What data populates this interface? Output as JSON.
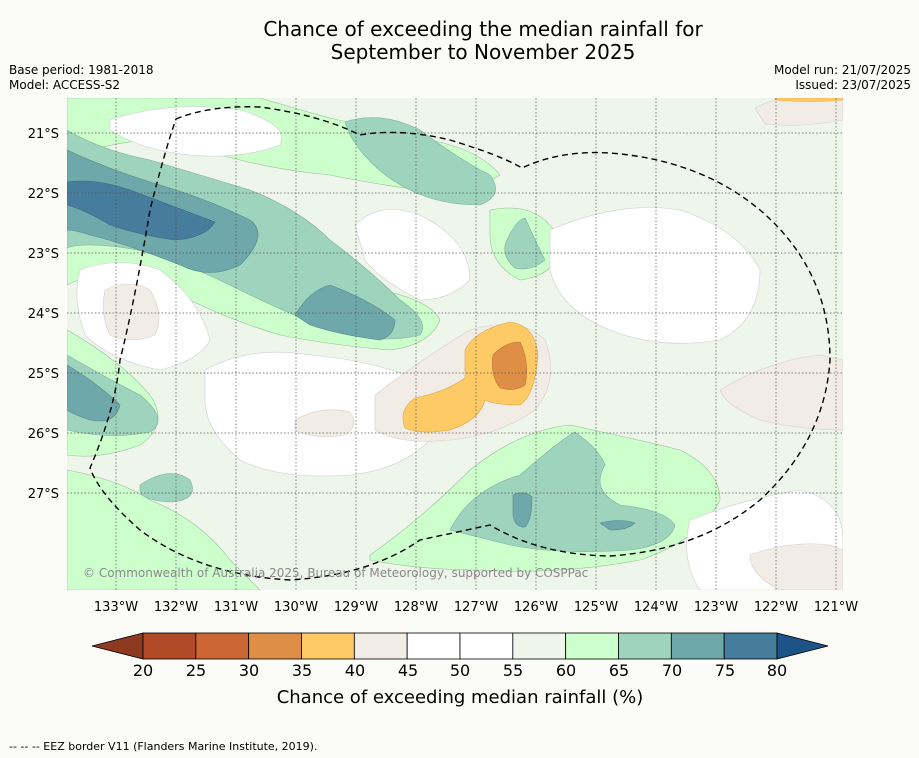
{
  "title_line1": "Chance of exceeding the median rainfall for",
  "title_line2": "September to November 2025",
  "base_period": "Base period: 1981-2018",
  "model": "Model: ACCESS-S2",
  "model_run": "Model run: 21/07/2025",
  "issued": "Issued: 23/07/2025",
  "lat_labels": [
    "21°S",
    "22°S",
    "23°S",
    "24°S",
    "25°S",
    "26°S",
    "27°S"
  ],
  "lon_labels": [
    "133°W",
    "132°W",
    "131°W",
    "130°W",
    "129°W",
    "128°W",
    "127°W",
    "126°W",
    "125°W",
    "124°W",
    "123°W",
    "122°W",
    "121°W"
  ],
  "copyright": "© Commonwealth of Australia 2025, Bureau of Meteorology, supported by COSPPac",
  "colorbar": {
    "ticks": [
      "20",
      "25",
      "30",
      "35",
      "40",
      "45",
      "50",
      "55",
      "60",
      "65",
      "70",
      "75",
      "80"
    ],
    "label": "Chance of exceeding median rainfall (%)",
    "colors": [
      "#8e3a20",
      "#b14a26",
      "#cc6633",
      "#de8f45",
      "#fdca65",
      "#f2ece6",
      "#ffffff",
      "#ffffff",
      "#eef5ea",
      "#ccffcc",
      "#9ed4bd",
      "#6fa8aa",
      "#467c9c",
      "#1d5387"
    ]
  },
  "legend_footer": "-- -- -- EEZ border V11 (Flanders Marine Institute, 2019)."
}
